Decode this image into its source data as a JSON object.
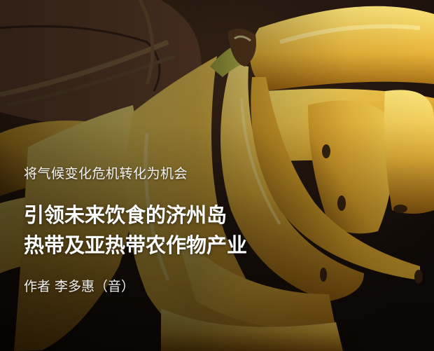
{
  "article": {
    "kicker": "将气候变化危机转化为机会",
    "title_line1": "引领未来饮食的济州岛",
    "title_line2": "热带及亚热带农作物产业",
    "byline": "作者 李多惠（音）"
  },
  "colors": {
    "banana_yellow": "#e9b73c",
    "banana_light": "#f4d25f",
    "background_dark": "#1a120b"
  }
}
